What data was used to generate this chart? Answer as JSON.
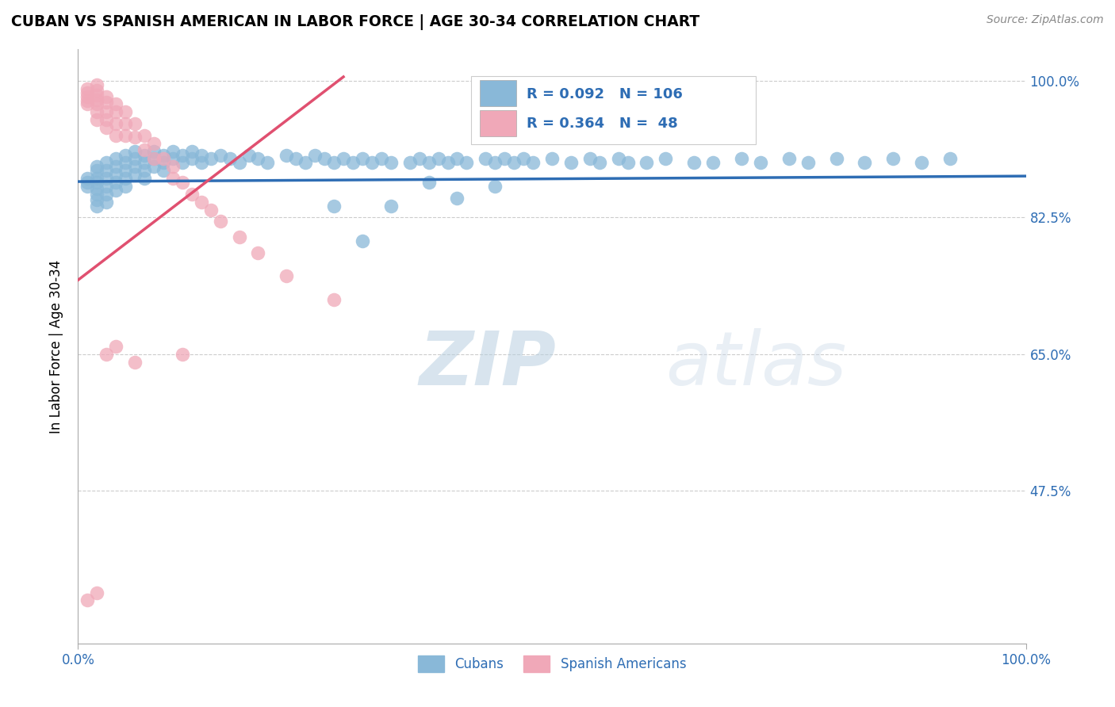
{
  "title": "CUBAN VS SPANISH AMERICAN IN LABOR FORCE | AGE 30-34 CORRELATION CHART",
  "source": "Source: ZipAtlas.com",
  "ylabel": "In Labor Force | Age 30-34",
  "xlim": [
    0.0,
    1.0
  ],
  "ylim": [
    0.28,
    1.04
  ],
  "ytick_positions": [
    1.0,
    0.825,
    0.65,
    0.475
  ],
  "ytick_labels": [
    "100.0%",
    "82.5%",
    "65.0%",
    "47.5%"
  ],
  "xtick_positions": [
    0.0,
    1.0
  ],
  "xtick_labels": [
    "0.0%",
    "100.0%"
  ],
  "grid_color": "#cccccc",
  "background_color": "#ffffff",
  "blue_color": "#89b8d8",
  "pink_color": "#f0a8b8",
  "blue_line_color": "#2e6db4",
  "pink_line_color": "#e05070",
  "R_blue": 0.092,
  "N_blue": 106,
  "R_pink": 0.364,
  "N_pink": 48,
  "watermark_color": "#ccdcec",
  "blue_trend_x": [
    0.0,
    1.0
  ],
  "blue_trend_y": [
    0.871,
    0.878
  ],
  "pink_trend_x": [
    0.0,
    0.28
  ],
  "pink_trend_y": [
    0.745,
    1.005
  ],
  "cubans_x": [
    0.01,
    0.01,
    0.01,
    0.02,
    0.02,
    0.02,
    0.02,
    0.02,
    0.02,
    0.02,
    0.02,
    0.03,
    0.03,
    0.03,
    0.03,
    0.03,
    0.03,
    0.04,
    0.04,
    0.04,
    0.04,
    0.04,
    0.05,
    0.05,
    0.05,
    0.05,
    0.05,
    0.06,
    0.06,
    0.06,
    0.06,
    0.07,
    0.07,
    0.07,
    0.07,
    0.08,
    0.08,
    0.08,
    0.09,
    0.09,
    0.09,
    0.1,
    0.1,
    0.11,
    0.11,
    0.12,
    0.12,
    0.13,
    0.13,
    0.14,
    0.15,
    0.16,
    0.17,
    0.18,
    0.19,
    0.2,
    0.22,
    0.23,
    0.24,
    0.25,
    0.26,
    0.27,
    0.28,
    0.29,
    0.3,
    0.31,
    0.32,
    0.33,
    0.35,
    0.36,
    0.37,
    0.38,
    0.39,
    0.4,
    0.41,
    0.43,
    0.44,
    0.45,
    0.46,
    0.47,
    0.48,
    0.5,
    0.52,
    0.54,
    0.55,
    0.57,
    0.58,
    0.6,
    0.62,
    0.65,
    0.67,
    0.7,
    0.72,
    0.75,
    0.77,
    0.8,
    0.83,
    0.86,
    0.89,
    0.92,
    0.27,
    0.3,
    0.33,
    0.37,
    0.4,
    0.44
  ],
  "cubans_y": [
    0.875,
    0.87,
    0.865,
    0.89,
    0.885,
    0.875,
    0.87,
    0.862,
    0.855,
    0.848,
    0.84,
    0.895,
    0.885,
    0.875,
    0.865,
    0.855,
    0.845,
    0.9,
    0.89,
    0.88,
    0.87,
    0.86,
    0.905,
    0.895,
    0.885,
    0.875,
    0.865,
    0.91,
    0.9,
    0.89,
    0.88,
    0.905,
    0.895,
    0.885,
    0.875,
    0.91,
    0.9,
    0.89,
    0.905,
    0.895,
    0.885,
    0.91,
    0.9,
    0.905,
    0.895,
    0.91,
    0.9,
    0.905,
    0.895,
    0.9,
    0.905,
    0.9,
    0.895,
    0.905,
    0.9,
    0.895,
    0.905,
    0.9,
    0.895,
    0.905,
    0.9,
    0.895,
    0.9,
    0.895,
    0.9,
    0.895,
    0.9,
    0.895,
    0.895,
    0.9,
    0.895,
    0.9,
    0.895,
    0.9,
    0.895,
    0.9,
    0.895,
    0.9,
    0.895,
    0.9,
    0.895,
    0.9,
    0.895,
    0.9,
    0.895,
    0.9,
    0.895,
    0.895,
    0.9,
    0.895,
    0.895,
    0.9,
    0.895,
    0.9,
    0.895,
    0.9,
    0.895,
    0.9,
    0.895,
    0.9,
    0.84,
    0.795,
    0.84,
    0.87,
    0.85,
    0.865
  ],
  "spanish_x": [
    0.01,
    0.01,
    0.01,
    0.01,
    0.01,
    0.02,
    0.02,
    0.02,
    0.02,
    0.02,
    0.02,
    0.02,
    0.03,
    0.03,
    0.03,
    0.03,
    0.03,
    0.04,
    0.04,
    0.04,
    0.04,
    0.05,
    0.05,
    0.05,
    0.06,
    0.06,
    0.07,
    0.07,
    0.08,
    0.08,
    0.09,
    0.1,
    0.1,
    0.11,
    0.12,
    0.13,
    0.14,
    0.15,
    0.17,
    0.19,
    0.22,
    0.27,
    0.01,
    0.02,
    0.03,
    0.04,
    0.06,
    0.11
  ],
  "spanish_y": [
    0.99,
    0.985,
    0.98,
    0.975,
    0.97,
    0.995,
    0.988,
    0.982,
    0.976,
    0.97,
    0.96,
    0.95,
    0.98,
    0.972,
    0.96,
    0.95,
    0.94,
    0.97,
    0.96,
    0.945,
    0.93,
    0.96,
    0.945,
    0.93,
    0.945,
    0.928,
    0.93,
    0.912,
    0.92,
    0.9,
    0.9,
    0.89,
    0.875,
    0.87,
    0.855,
    0.845,
    0.835,
    0.82,
    0.8,
    0.78,
    0.75,
    0.72,
    0.335,
    0.345,
    0.65,
    0.66,
    0.64,
    0.65
  ]
}
